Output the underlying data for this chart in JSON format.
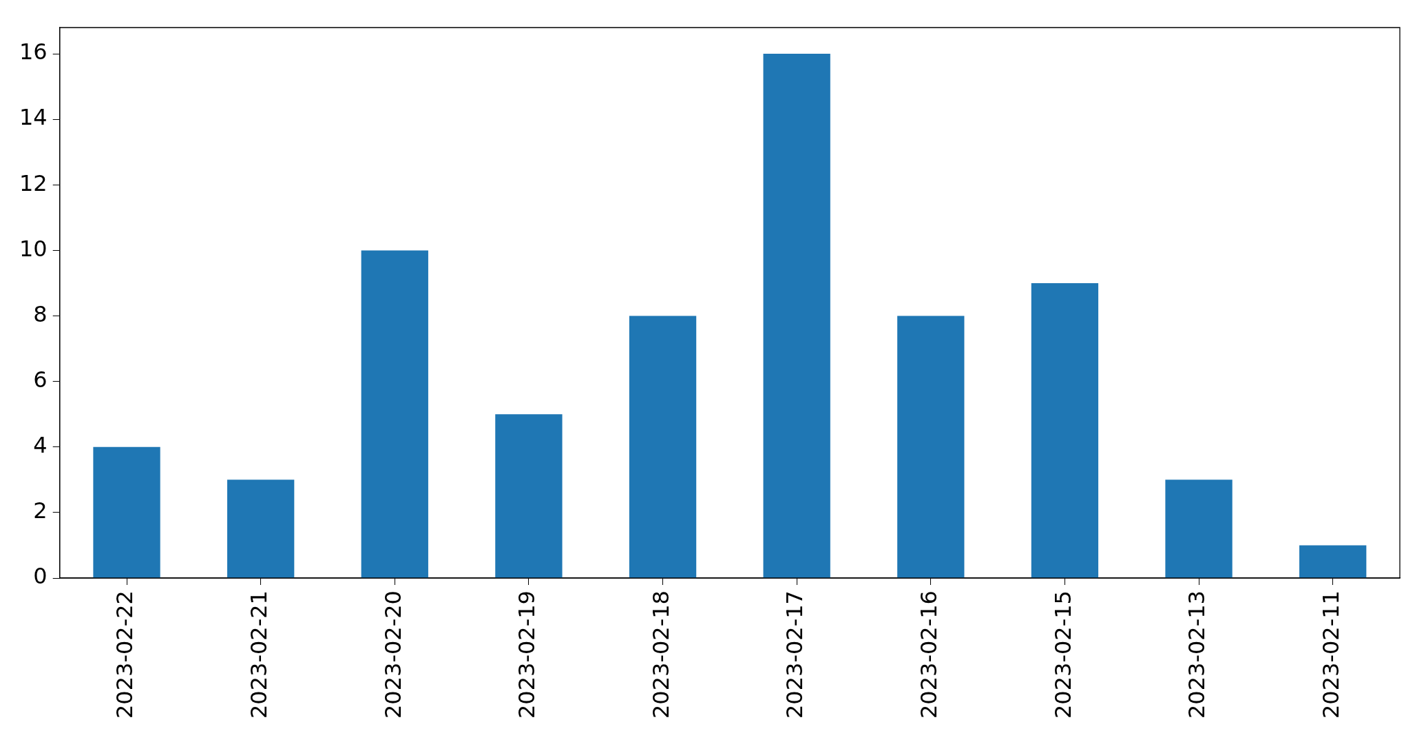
{
  "chart_data": {
    "type": "bar",
    "categories": [
      "2023-02-22",
      "2023-02-21",
      "2023-02-20",
      "2023-02-19",
      "2023-02-18",
      "2023-02-17",
      "2023-02-16",
      "2023-02-15",
      "2023-02-13",
      "2023-02-11"
    ],
    "values": [
      4,
      3,
      10,
      5,
      8,
      16,
      8,
      9,
      3,
      1
    ],
    "color": "#1f77b4",
    "ylim": [
      0,
      16.8
    ],
    "yticks": [
      0,
      2,
      4,
      6,
      8,
      10,
      12,
      14,
      16
    ],
    "grid": false,
    "legend": false
  }
}
